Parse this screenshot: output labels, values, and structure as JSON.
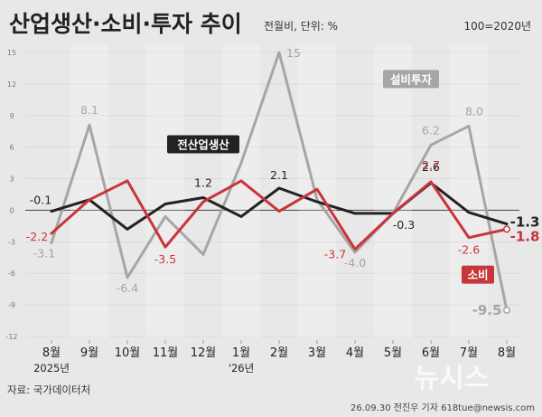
{
  "chart_data": {
    "type": "line",
    "title": "산업생산·소비·투자 추이",
    "unit_note": "전월비, 단위: %",
    "base_note": "100=2020년",
    "source": "자료: 국가데이터처",
    "credit": "26.09.30 전진우 기자 618tue@newsis.com",
    "watermark": "뉴시스",
    "categories": [
      "8월",
      "9월",
      "10월",
      "11월",
      "12월",
      "1월",
      "2월",
      "3월",
      "4월",
      "5월",
      "6월",
      "7월",
      "8월"
    ],
    "category_sublabels": [
      "2025년",
      "",
      "",
      "",
      "",
      "'26년",
      "",
      "",
      "",
      "",
      "",
      "",
      ""
    ],
    "y_ticks": [
      15,
      12,
      9,
      6,
      3,
      0,
      -3,
      -6,
      -9,
      -12
    ],
    "ylim": [
      -12,
      15
    ],
    "series": [
      {
        "name": "전산업생산",
        "color": "#222222",
        "values": [
          -0.1,
          1.0,
          -1.8,
          0.6,
          1.2,
          -0.6,
          2.1,
          0.8,
          -0.3,
          -0.3,
          2.6,
          -0.2,
          -1.3
        ],
        "labels": [
          "-0.1",
          "",
          "",
          "",
          "1.2",
          "",
          "2.1",
          "",
          "",
          "-0.3",
          "2.6",
          "",
          "-1.3"
        ]
      },
      {
        "name": "소비",
        "color": "#c8353a",
        "values": [
          -2.2,
          1.0,
          2.8,
          -3.5,
          0.8,
          2.8,
          -0.1,
          2.0,
          -3.7,
          -0.3,
          2.7,
          -2.6,
          -1.8
        ],
        "labels": [
          "-2.2",
          "",
          "",
          "-3.5",
          "",
          "",
          "",
          "",
          "-3.7",
          "",
          "2.7",
          "-2.6",
          "-1.8"
        ]
      },
      {
        "name": "설비투자",
        "color": "#a6a6a6",
        "values": [
          -3.1,
          8.1,
          -6.4,
          -0.6,
          -4.2,
          4.5,
          15.0,
          1.0,
          -4.0,
          -0.3,
          6.2,
          8.0,
          -9.5
        ],
        "labels": [
          "-3.1",
          "8.1",
          "-6.4",
          "",
          "",
          "",
          "15",
          "",
          "-4.0",
          "",
          "6.2",
          "8.0",
          "-9.5"
        ]
      }
    ]
  }
}
